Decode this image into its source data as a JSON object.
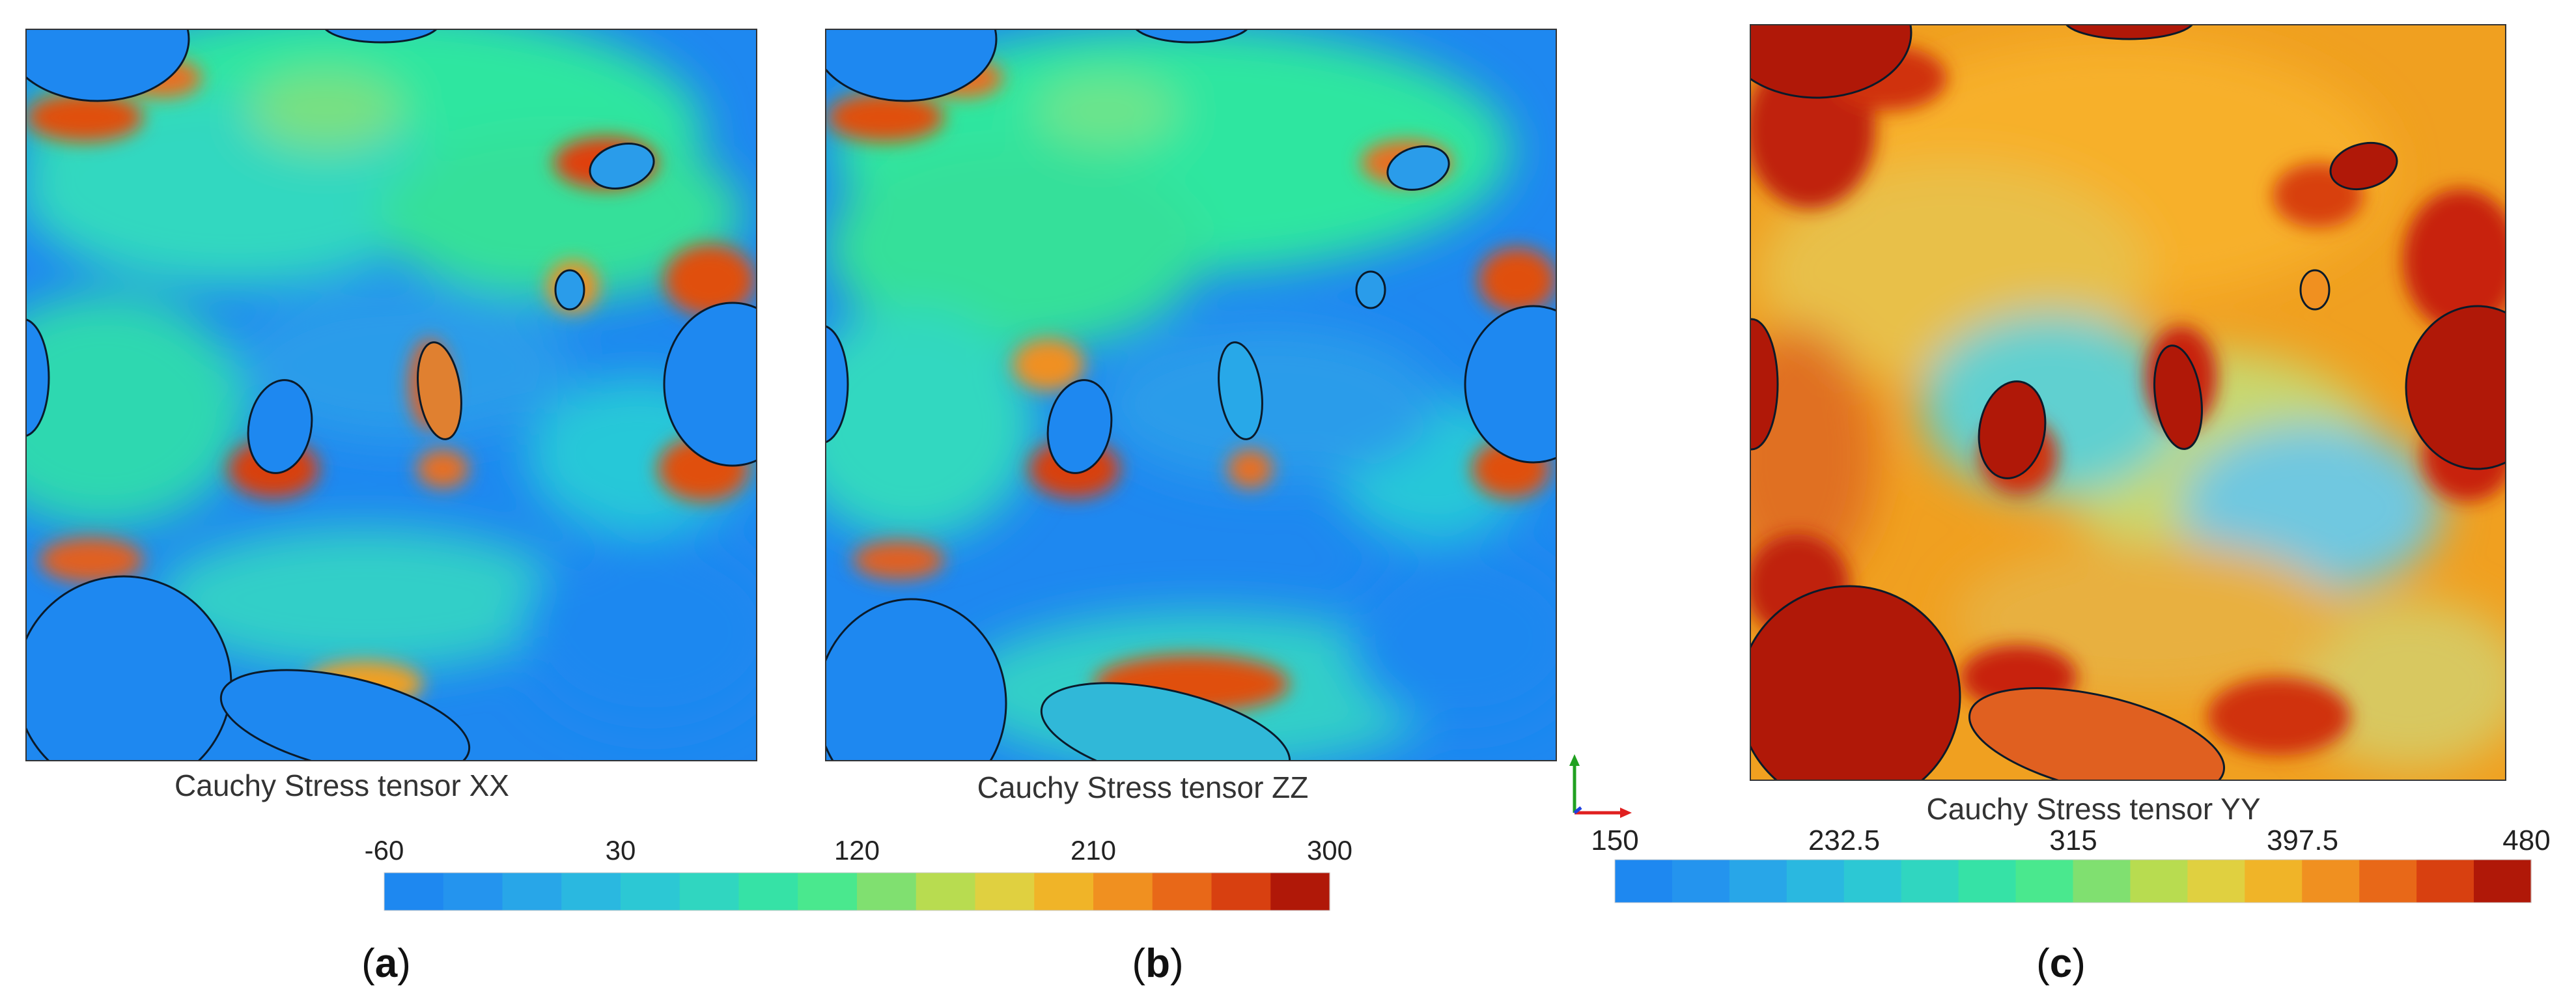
{
  "panels": [
    {
      "id": "a",
      "title": "Cauchy Stress tensor XX",
      "label_open": "(",
      "label_letter": "a",
      "label_close": ")",
      "colormap": "blue-green"
    },
    {
      "id": "b",
      "title": "Cauchy Stress tensor ZZ",
      "label_open": "(",
      "label_letter": "b",
      "label_close": ")",
      "colormap": "blue-green"
    },
    {
      "id": "c",
      "title": "Cauchy Stress tensor YY",
      "label_open": "(",
      "label_letter": "c",
      "label_close": ")",
      "colormap": "orange-red"
    }
  ],
  "colorbars": [
    {
      "id": "xx-zz",
      "min": -60,
      "max": 300,
      "ticks": [
        "-60",
        "30",
        "120",
        "210",
        "300"
      ],
      "bins": 16
    },
    {
      "id": "yy",
      "min": 150,
      "max": 480,
      "ticks": [
        "150",
        "232.5",
        "315",
        "397.5",
        "480"
      ],
      "bins": 16
    }
  ],
  "colors": {
    "blue": "#1e88f0",
    "cyan": "#28c8d8",
    "green": "#2ee6a0",
    "yellow": "#d8d84a",
    "orange": "#f0a020",
    "red": "#d02810",
    "dark_red": "#b01808",
    "outline": "#0a1a2a"
  },
  "axes_triad": {
    "x_color": "#e02020",
    "y_color": "#20a020",
    "z_color": "#2040e0"
  }
}
